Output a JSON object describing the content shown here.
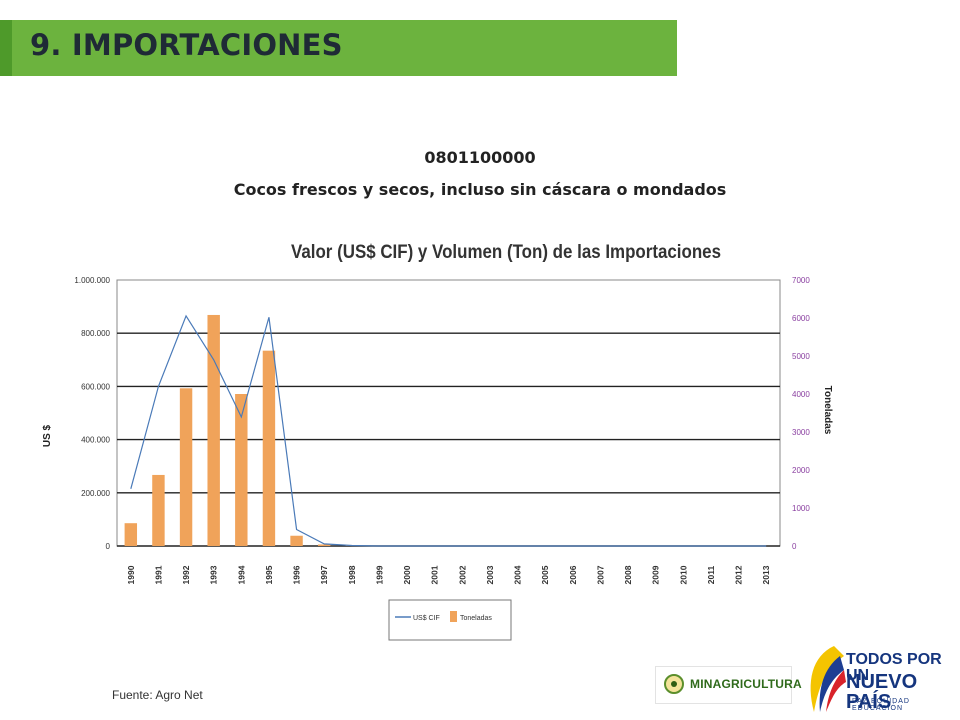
{
  "slide": {
    "section_title": "9. IMPORTACIONES",
    "product_code": "0801100000",
    "product_name": "Cocos frescos y secos, incluso sin cáscara o mondados",
    "source": "Fuente: Agro Net"
  },
  "logos": {
    "ministry": "MINAGRICULTURA",
    "gov_line1": "TODOS POR UN",
    "gov_line2": "NUEVO PAÍS",
    "gov_line3": "PAZ EQUIDAD EDUCACIÓN"
  },
  "colors": {
    "title_bar": "#6cb33e",
    "line_series": "#4a7ab8",
    "bar_series": "#f0a35a",
    "right_axis": "#8a3fa0"
  },
  "chart_data": {
    "type": "bar",
    "title": "Valor (US$ CIF) y Volumen (Ton) de las Importaciones",
    "x": [
      "1990",
      "1991",
      "1992",
      "1993",
      "1994",
      "1995",
      "1996",
      "1997",
      "1998",
      "1999",
      "2000",
      "2001",
      "2002",
      "2003",
      "2004",
      "2005",
      "2006",
      "2007",
      "2008",
      "2009",
      "2010",
      "2011",
      "2012",
      "2013"
    ],
    "ylabel": "US $",
    "y2label": "Toneladas",
    "ylim": [
      0,
      1000000
    ],
    "y2lim": [
      0,
      7000
    ],
    "yticks": [
      "1.000.000",
      "800.000",
      "600.000",
      "400.000",
      "200.000",
      "0"
    ],
    "y2ticks": [
      "7000",
      "6000",
      "5000",
      "4000",
      "3000",
      "2000",
      "1000",
      "0"
    ],
    "grid": true,
    "legend": "bottom",
    "series": [
      {
        "name": "US$ CIF",
        "type": "line",
        "axis": "left",
        "values": [
          215000,
          600000,
          865000,
          700000,
          485000,
          860000,
          62000,
          8000,
          2000,
          0,
          0,
          0,
          0,
          0,
          0,
          0,
          0,
          0,
          0,
          0,
          0,
          0,
          0,
          0
        ]
      },
      {
        "name": "Toneladas",
        "type": "bar",
        "axis": "right",
        "values": [
          600,
          1870,
          4150,
          6080,
          4000,
          5140,
          270,
          40,
          10,
          0,
          0,
          0,
          0,
          0,
          0,
          0,
          0,
          0,
          0,
          0,
          0,
          0,
          0,
          0
        ]
      }
    ]
  }
}
